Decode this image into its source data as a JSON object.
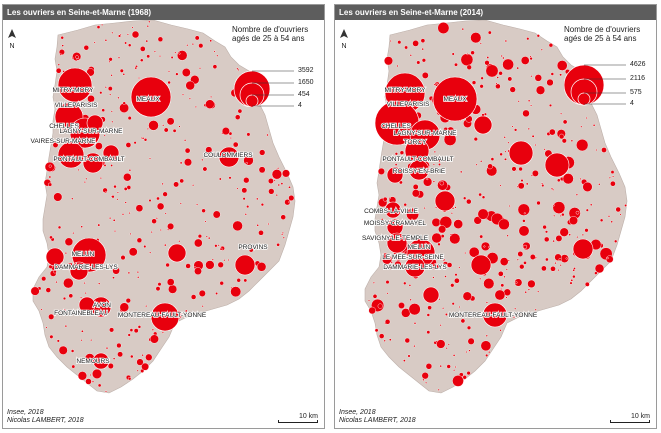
{
  "colors": {
    "land": "#d8cbc5",
    "bubble": "#e8000d",
    "border": "#ffffff",
    "title_bg": "#5d5d5d"
  },
  "panels": [
    {
      "title": "Les ouvriers en Seine-et-Marne (1968)",
      "north": "N",
      "legend": {
        "title": "Nombre de d'ouvriers agés de 25 à 54 ans",
        "values": [
          "3592",
          "1650",
          "454",
          "4"
        ]
      },
      "scale": "10 km",
      "credits": [
        "Insee, 2018",
        "Nicolas LAMBERT, 2018"
      ],
      "towns": [
        "MITRY-MORY",
        "MEAUX",
        "VILLEPARISIS",
        "CHELLES",
        "LAGNY-SUR-MARNE",
        "VAIRES-SUR-MARNE",
        "PONTAULT-COMBAULT",
        "COULOMMIERS",
        "PROVINS",
        "MELUN",
        "DAMMARIE-LES-LYS",
        "AVON",
        "FONTAINEBLEAU",
        "MONTEREAU-FAULT-YONNE",
        "NEMOURS"
      ]
    },
    {
      "title": "Les ouvriers en Seine-et-Marne (2014)",
      "north": "N",
      "legend": {
        "title": "Nombre de d'ouvriers agés de 25 à 54 ans",
        "values": [
          "4626",
          "2116",
          "575",
          "4"
        ]
      },
      "scale": "10 km",
      "credits": [
        "Insee, 2018",
        "Nicolas LAMBERT, 2018"
      ],
      "towns": [
        "MITRY-MORY",
        "MEAUX",
        "VILLEPARISIS",
        "CHELLES",
        "LAGNY-SUR-MARNE",
        "TORCY",
        "PONTAULT-COMBAULT",
        "ROISSY-EN-BRIE",
        "COMBS-LA-VILLE",
        "MOISSY-CRAMAYEL",
        "SAVIGNY-LE-TEMPLE",
        "MELUN",
        "LE MEE-SUR-SEINE",
        "DAMMARIE-LES-LYS",
        "MONTEREAU-FAULT-YONNE"
      ]
    }
  ]
}
